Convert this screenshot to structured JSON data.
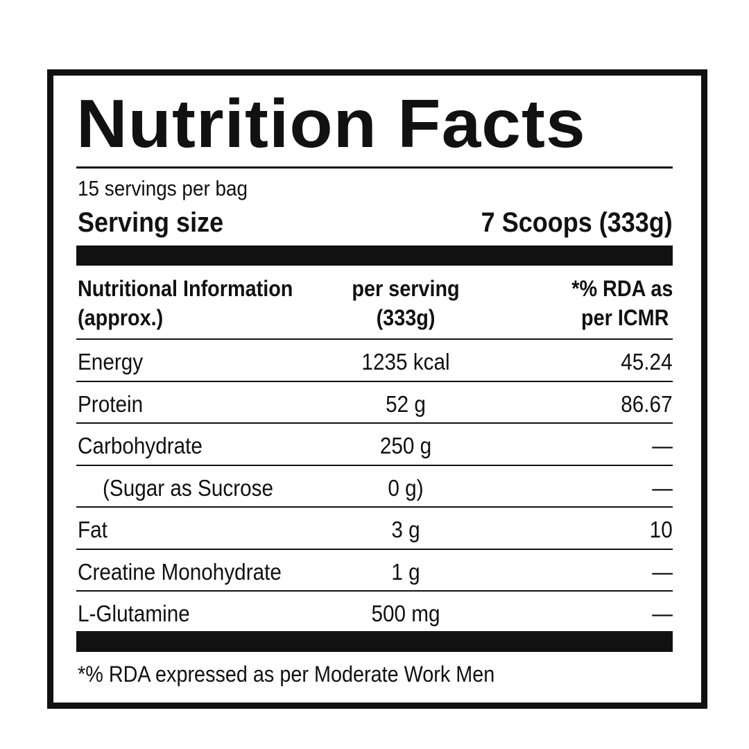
{
  "title": "Nutrition Facts",
  "servings_per": "15 servings per bag",
  "serving_size_label": "Serving size",
  "serving_size_value": "7 Scoops (333g)",
  "headers": {
    "col1_line1": "Nutritional Information",
    "col1_line2": "(approx.)",
    "col2_line1": "per serving",
    "col2_line2": "(333g)",
    "col3_line1": "*% RDA as",
    "col3_line2": "per ICMR"
  },
  "rows": [
    {
      "name": "Energy",
      "amount": "1235 kcal",
      "rda": "45.24"
    },
    {
      "name": "Protein",
      "amount": "52 g",
      "rda": "86.67"
    },
    {
      "name": "Carbohydrate",
      "amount": "250 g",
      "rda": "—"
    },
    {
      "name": "(Sugar as Sucrose",
      "amount": "0 g)",
      "rda": "—"
    },
    {
      "name": "Fat",
      "amount": "3 g",
      "rda": "10"
    },
    {
      "name": "Creatine Monohydrate",
      "amount": "1 g",
      "rda": "—"
    },
    {
      "name": "L-Glutamine",
      "amount": "500 mg",
      "rda": "—"
    }
  ],
  "footnote": "*% RDA expressed as per Moderate Work Men"
}
